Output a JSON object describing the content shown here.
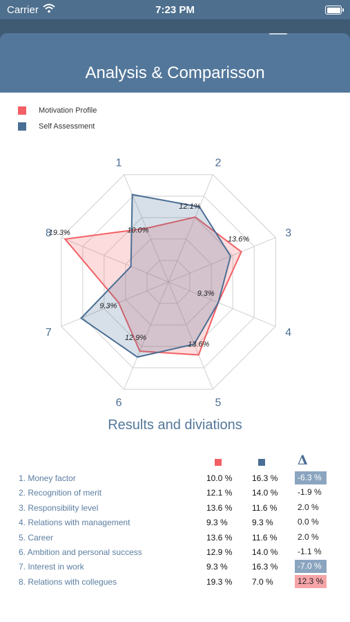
{
  "status_bar": {
    "carrier": "Carrier",
    "time": "7:23 PM"
  },
  "header": {
    "title": "Analysis & Comparisson"
  },
  "colors": {
    "motivation": "#f26065",
    "self": "#4a6e94",
    "header": "#53779a"
  },
  "legend": [
    {
      "label": "Motivation Profile",
      "color": "#f26065"
    },
    {
      "label": "Self Assessment",
      "color": "#4a6e94"
    }
  ],
  "chart_data": {
    "type": "radar",
    "axes": [
      "1",
      "2",
      "3",
      "4",
      "5",
      "6",
      "7",
      "8"
    ],
    "max": 20,
    "series": [
      {
        "name": "Motivation Profile",
        "values": [
          10.0,
          12.1,
          13.6,
          9.3,
          13.6,
          12.9,
          9.3,
          19.3
        ]
      },
      {
        "name": "Self Assessment",
        "values": [
          16.3,
          14.0,
          11.6,
          9.3,
          11.6,
          14.0,
          16.3,
          7.0
        ]
      }
    ],
    "value_labels": [
      "10.0%",
      "12.1%",
      "13.6%",
      "9.3%",
      "13.6%",
      "12.9%",
      "9.3%",
      "19.3%"
    ]
  },
  "results": {
    "title": "Results and diviations",
    "delta_symbol": "Δ",
    "rows": [
      {
        "label": "1. Money factor",
        "motivation": "10.0 %",
        "self": "16.3 %",
        "delta": "-6.3 %",
        "highlight": "neg"
      },
      {
        "label": "2. Recognition of merit",
        "motivation": "12.1 %",
        "self": "14.0 %",
        "delta": "-1.9 %",
        "highlight": ""
      },
      {
        "label": "3. Responsibility level",
        "motivation": "13.6 %",
        "self": "11.6 %",
        "delta": "2.0 %",
        "highlight": ""
      },
      {
        "label": "4. Relations with management",
        "motivation": "9.3 %",
        "self": "9.3 %",
        "delta": "0.0 %",
        "highlight": ""
      },
      {
        "label": "5. Career",
        "motivation": "13.6 %",
        "self": "11.6 %",
        "delta": "2.0 %",
        "highlight": ""
      },
      {
        "label": "6. Ambition and personal success",
        "motivation": "12.9 %",
        "self": "14.0 %",
        "delta": "-1.1 %",
        "highlight": ""
      },
      {
        "label": "7. Interest in work",
        "motivation": "9.3 %",
        "self": "16.3 %",
        "delta": "-7.0 %",
        "highlight": "neg"
      },
      {
        "label": "8. Relations with collegues",
        "motivation": "19.3 %",
        "self": "7.0 %",
        "delta": "12.3 %",
        "highlight": "pos"
      }
    ]
  }
}
